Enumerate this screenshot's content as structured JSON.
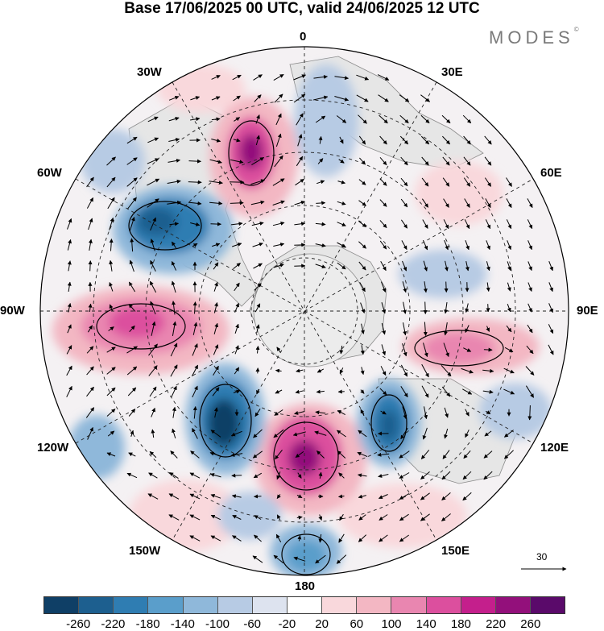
{
  "title": "Base 17/06/2025 00 UTC, valid 24/06/2025 12 UTC",
  "logo": "MODES",
  "logo_mark": "©",
  "longitude_labels": {
    "top": "0",
    "top_right": "30E",
    "right_upper": "60E",
    "right": "90E",
    "right_lower": "120E",
    "bottom_right": "150E",
    "bottom": "180",
    "bottom_left": "150W",
    "left_lower": "120W",
    "left": "90W",
    "left_upper": "60W",
    "top_left": "30W"
  },
  "reference_vector": "30",
  "colorbar": {
    "ticks": [
      "-260",
      "-220",
      "-180",
      "-140",
      "-100",
      "-60",
      "-20",
      "20",
      "60",
      "100",
      "140",
      "180",
      "220",
      "260"
    ],
    "colors": [
      "#0f3f66",
      "#1d5f8f",
      "#2f7db2",
      "#5a9ecb",
      "#8fb8da",
      "#b7cbe4",
      "#dde3ef",
      "#ffffff",
      "#f9d8dc",
      "#f3b7c3",
      "#e986b0",
      "#dc4f9e",
      "#c41f8c",
      "#93107b",
      "#5a0a6a"
    ]
  },
  "colors": {
    "land": "#e9e9e9",
    "grid": "#222222",
    "coast": "#777777"
  }
}
